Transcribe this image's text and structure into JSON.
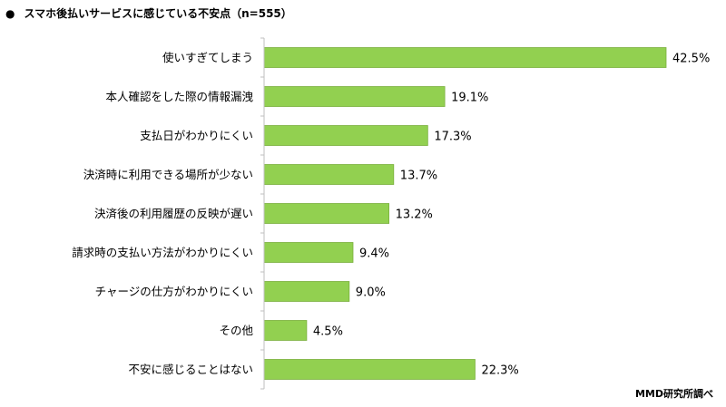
{
  "chart_data": {
    "type": "bar",
    "orientation": "horizontal",
    "title": "スマホ後払いサービスに感じている不安点（n=555）",
    "categories": [
      "使いすぎてしまう",
      "本人確認をした際の情報漏洩",
      "支払日がわかりにくい",
      "決済時に利用できる場所が少ない",
      "決済後の利用履歴の反映が遅い",
      "請求時の支払い方法がわかりにくい",
      "チャージの仕方がわかりにくい",
      "その他",
      "不安に感じることはない"
    ],
    "values": [
      42.5,
      19.1,
      17.3,
      13.7,
      13.2,
      9.4,
      9.0,
      4.5,
      22.3
    ],
    "value_labels": [
      "42.5%",
      "19.1%",
      "17.3%",
      "13.7%",
      "13.2%",
      "9.4%",
      "9.0%",
      "4.5%",
      "22.3%"
    ],
    "xlim": [
      0,
      42.5
    ],
    "grid": false,
    "colors": {
      "bar": "#92d050",
      "bar_stroke": "#7ab03c",
      "axis": "#bfbfbf"
    }
  },
  "source": "MMD研究所調べ"
}
